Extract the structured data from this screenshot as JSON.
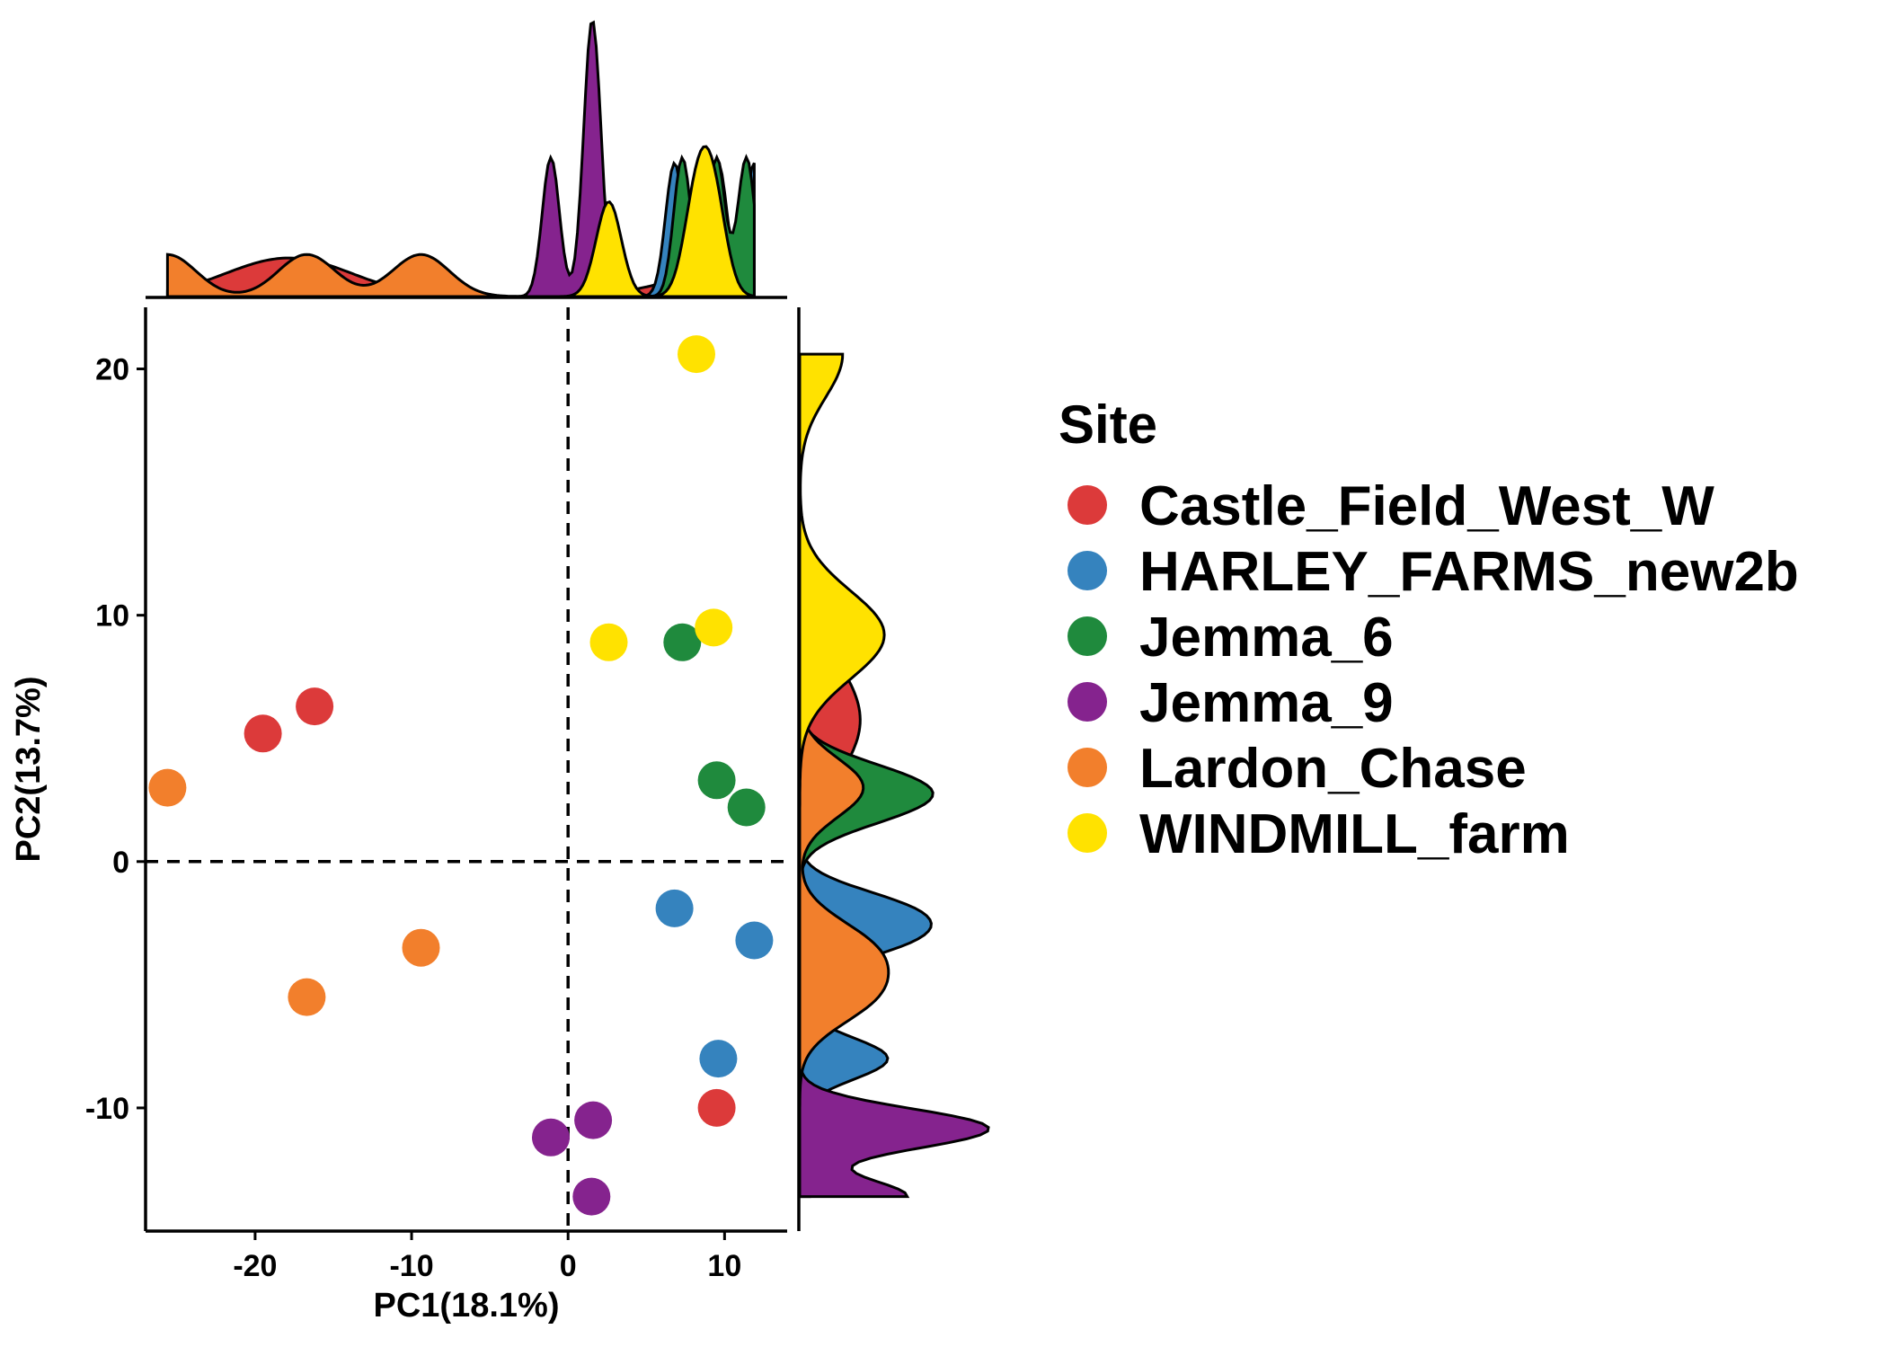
{
  "chart_data": {
    "type": "scatter",
    "xlabel": "PC1(18.1%)",
    "ylabel": "PC2(13.7%)",
    "xlim": [
      -27,
      14
    ],
    "ylim": [
      -15,
      22.5
    ],
    "xticks": [
      -20,
      -10,
      0,
      10
    ],
    "yticks": [
      -10,
      0,
      10,
      20
    ],
    "reference_lines": {
      "x": 0,
      "y": 0,
      "style": "dashed"
    },
    "marginal_density": {
      "top": true,
      "right": true
    },
    "legend": {
      "title": "Site",
      "position": "right"
    },
    "series": [
      {
        "name": "Castle_Field_West_W",
        "color": "#DC3A3A",
        "points": [
          {
            "x": -19.5,
            "y": 5.2
          },
          {
            "x": -16.2,
            "y": 6.3
          },
          {
            "x": 9.5,
            "y": -10.0
          }
        ]
      },
      {
        "name": "HARLEY_FARMS_new2b",
        "color": "#3583BE",
        "points": [
          {
            "x": 6.8,
            "y": -1.9
          },
          {
            "x": 11.9,
            "y": -3.2
          },
          {
            "x": 9.6,
            "y": -8.0
          }
        ]
      },
      {
        "name": "Jemma_6",
        "color": "#1F8A3D",
        "points": [
          {
            "x": 7.3,
            "y": 8.9
          },
          {
            "x": 9.5,
            "y": 3.3
          },
          {
            "x": 11.4,
            "y": 2.2
          }
        ]
      },
      {
        "name": "Jemma_9",
        "color": "#85238E",
        "points": [
          {
            "x": -1.1,
            "y": -11.2
          },
          {
            "x": 1.6,
            "y": -10.5
          },
          {
            "x": 1.5,
            "y": -13.6
          }
        ]
      },
      {
        "name": "Lardon_Chase",
        "color": "#F27F2C",
        "points": [
          {
            "x": -25.6,
            "y": 3.0
          },
          {
            "x": -9.4,
            "y": -3.5
          },
          {
            "x": -16.7,
            "y": -5.5
          }
        ]
      },
      {
        "name": "WINDMILL_farm",
        "color": "#FFE200",
        "points": [
          {
            "x": 8.2,
            "y": 20.6
          },
          {
            "x": 2.6,
            "y": 8.9
          },
          {
            "x": 9.3,
            "y": 9.5
          }
        ]
      }
    ]
  }
}
